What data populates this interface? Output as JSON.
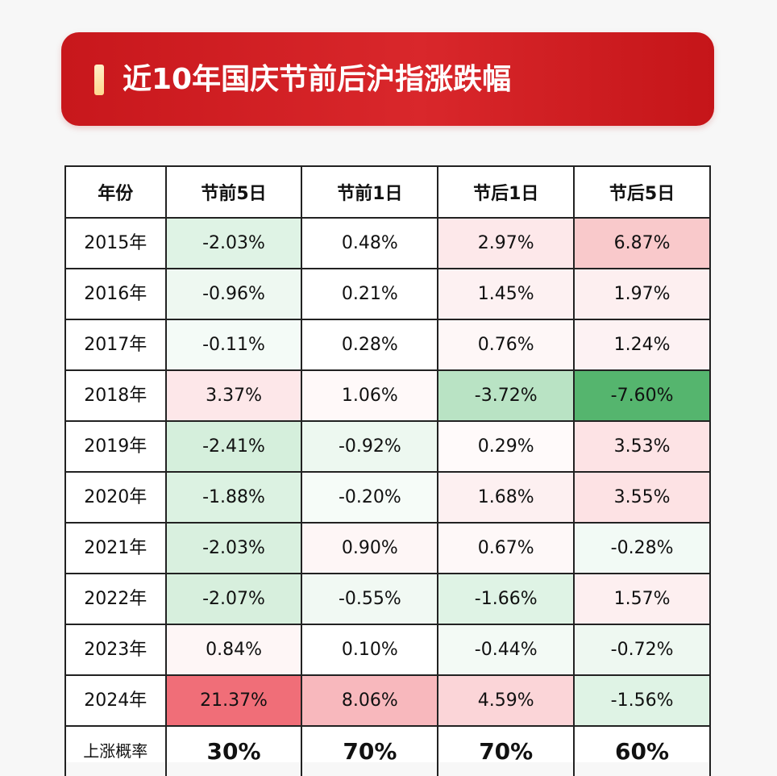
{
  "title": "近10年国庆节前后沪指涨跌幅",
  "table": {
    "headers": [
      "年份",
      "节前5日",
      "节前1日",
      "节后1日",
      "节后5日"
    ],
    "rows": [
      {
        "year": "2015年",
        "values": [
          "-2.03%",
          "0.48%",
          "2.97%",
          "6.87%"
        ],
        "bg": [
          "#dff3e5",
          "#ffffff",
          "#fde8ea",
          "#f9c9cb"
        ]
      },
      {
        "year": "2016年",
        "values": [
          "-0.96%",
          "0.21%",
          "1.45%",
          "1.97%"
        ],
        "bg": [
          "#eef8f1",
          "#ffffff",
          "#fdf1f2",
          "#fdeff0"
        ]
      },
      {
        "year": "2017年",
        "values": [
          "-0.11%",
          "0.28%",
          "0.76%",
          "1.24%"
        ],
        "bg": [
          "#f4fbf7",
          "#ffffff",
          "#fef7f7",
          "#fdf2f3"
        ]
      },
      {
        "year": "2018年",
        "values": [
          "3.37%",
          "1.06%",
          "-3.72%",
          "-7.60%"
        ],
        "bg": [
          "#fde7e9",
          "#fff9f9",
          "#b9e3c4",
          "#55b56e"
        ]
      },
      {
        "year": "2019年",
        "values": [
          "-2.41%",
          "-0.92%",
          "0.29%",
          "3.53%"
        ],
        "bg": [
          "#d5efdc",
          "#edf8f0",
          "#fffafa",
          "#fde3e5"
        ]
      },
      {
        "year": "2020年",
        "values": [
          "-1.88%",
          "-0.20%",
          "1.68%",
          "3.55%"
        ],
        "bg": [
          "#dcf2e2",
          "#f6fcf8",
          "#fdf0f1",
          "#fde2e4"
        ]
      },
      {
        "year": "2021年",
        "values": [
          "-2.03%",
          "0.90%",
          "0.67%",
          "-0.28%"
        ],
        "bg": [
          "#d9f0df",
          "#fef6f6",
          "#fef8f8",
          "#f2faf5"
        ]
      },
      {
        "year": "2022年",
        "values": [
          "-2.07%",
          "-0.55%",
          "-1.66%",
          "1.57%"
        ],
        "bg": [
          "#d7efdd",
          "#f1f9f3",
          "#dff3e5",
          "#fdeff0"
        ]
      },
      {
        "year": "2023年",
        "values": [
          "0.84%",
          "0.10%",
          "-0.44%",
          "-0.72%"
        ],
        "bg": [
          "#fef6f6",
          "#ffffff",
          "#f3faf5",
          "#eef8f1"
        ]
      },
      {
        "year": "2024年",
        "values": [
          "21.37%",
          "8.06%",
          "4.59%",
          "-1.56%"
        ],
        "bg": [
          "#f06e78",
          "#f8b8bd",
          "#fbd5d8",
          "#dff3e5"
        ]
      }
    ],
    "summary": {
      "label": "上涨概率",
      "values": [
        "30%",
        "70%",
        "70%",
        "60%"
      ]
    }
  },
  "colors": {
    "title_bg": "#d0181d",
    "border": "#222222"
  }
}
